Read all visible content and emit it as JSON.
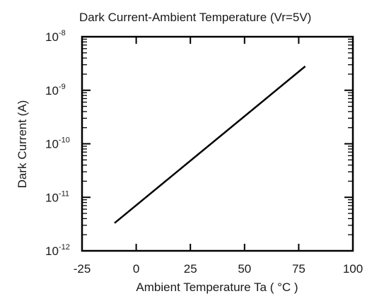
{
  "chart_data": {
    "type": "line",
    "title": "Dark Current-Ambient Temperature  (Vr=5V)",
    "xlabel": "Ambient Temperature Ta ( °C )",
    "ylabel": "Dark Current (A)",
    "xlim": [
      -25,
      100
    ],
    "ylim": [
      1e-12,
      1e-08
    ],
    "yscale": "log",
    "x_ticks": [
      -25,
      0,
      25,
      50,
      75,
      100
    ],
    "x_tick_labels": [
      "-25",
      "0",
      "25",
      "50",
      "75",
      "100"
    ],
    "y_ticks": [
      {
        "base": "10",
        "exp": "-12"
      },
      {
        "base": "10",
        "exp": "-11"
      },
      {
        "base": "10",
        "exp": "-10"
      },
      {
        "base": "10",
        "exp": "-9"
      },
      {
        "base": "10",
        "exp": "-8"
      }
    ],
    "grid": false,
    "series": [
      {
        "x": [
          -10,
          78
        ],
        "y": [
          3.3e-12,
          2.8e-09
        ]
      }
    ],
    "line_color": "#000000"
  }
}
